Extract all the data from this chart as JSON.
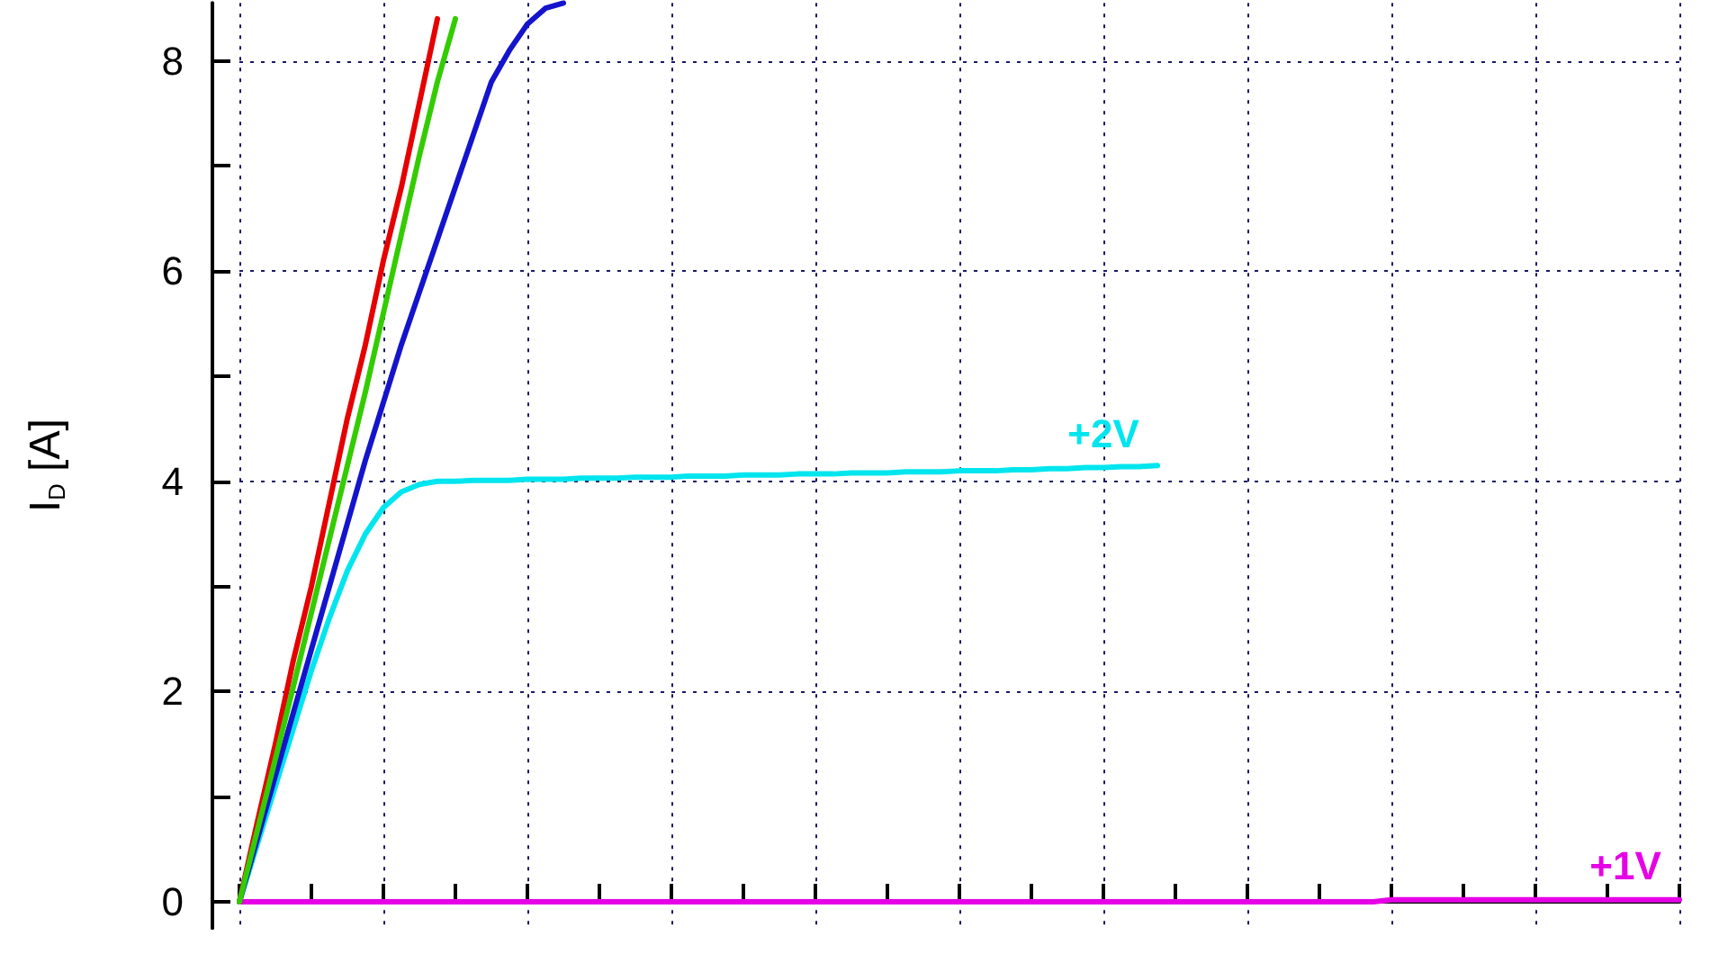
{
  "chart_data": {
    "type": "line",
    "ylabel": "I$_{D}$ [A]",
    "categories": [
      null,
      null,
      null,
      null,
      null,
      null,
      null,
      null,
      null,
      null,
      null,
      null,
      null,
      null,
      null,
      null,
      null,
      null,
      null,
      null,
      null,
      null,
      null,
      null,
      null,
      null,
      null,
      null,
      null,
      null,
      null,
      null,
      null,
      null,
      null,
      null,
      null,
      null,
      null,
      null,
      null,
      null,
      null,
      null,
      null,
      null,
      null,
      null,
      null,
      null,
      null,
      null,
      null,
      null,
      null,
      null,
      null,
      null,
      null,
      null,
      null,
      null,
      null,
      null,
      null,
      null,
      null,
      null,
      null,
      null,
      null,
      null,
      null,
      null,
      null,
      null,
      null,
      null,
      null,
      null,
      null
    ],
    "ylim": [
      -0.25,
      8.55
    ],
    "yticks": [
      0,
      {
        "value": 1,
        "label": null
      },
      2,
      {
        "value": 3,
        "label": null
      },
      4,
      {
        "value": 5,
        "label": null
      },
      6,
      {
        "value": 7,
        "label": null
      },
      8
    ],
    "grid": true,
    "marker": "none",
    "line_style": "solid",
    "series": [
      {
        "color": "#e60000",
        "values": [
          0,
          0.76,
          1.5,
          2.3,
          3.0,
          3.8,
          4.6,
          5.3,
          6.1,
          6.8,
          7.6,
          8.4,
          null,
          null,
          null,
          null,
          null,
          null,
          null,
          null,
          null,
          null,
          null,
          null,
          null,
          null,
          null,
          null,
          null,
          null,
          null,
          null,
          null,
          null,
          null,
          null,
          null,
          null,
          null,
          null,
          null,
          null,
          null,
          null,
          null,
          null,
          null,
          null,
          null,
          null,
          null,
          null,
          null,
          null,
          null,
          null,
          null,
          null,
          null,
          null,
          null,
          null,
          null,
          null,
          null,
          null,
          null,
          null,
          null,
          null,
          null,
          null,
          null,
          null,
          null,
          null,
          null,
          null,
          null,
          null,
          null
        ]
      },
      {
        "color": "#33cc00",
        "values": [
          0,
          0.68,
          1.36,
          2.05,
          2.75,
          3.45,
          4.15,
          4.85,
          5.6,
          6.35,
          7.1,
          7.8,
          8.4,
          null,
          null,
          null,
          null,
          null,
          null,
          null,
          null,
          null,
          null,
          null,
          null,
          null,
          null,
          null,
          null,
          null,
          null,
          null,
          null,
          null,
          null,
          null,
          null,
          null,
          null,
          null,
          null,
          null,
          null,
          null,
          null,
          null,
          null,
          null,
          null,
          null,
          null,
          null,
          null,
          null,
          null,
          null,
          null,
          null,
          null,
          null,
          null,
          null,
          null,
          null,
          null,
          null,
          null,
          null,
          null,
          null,
          null,
          null,
          null,
          null,
          null,
          null,
          null,
          null,
          null,
          null,
          null
        ]
      },
      {
        "color": "#1414cc",
        "values": [
          0,
          0.6,
          1.2,
          1.8,
          2.4,
          3.0,
          3.6,
          4.2,
          4.75,
          5.3,
          5.8,
          6.3,
          6.8,
          7.3,
          7.8,
          8.1,
          8.35,
          8.5,
          8.55,
          null,
          null,
          null,
          null,
          null,
          null,
          null,
          null,
          null,
          null,
          null,
          null,
          null,
          null,
          null,
          null,
          null,
          null,
          null,
          null,
          null,
          null,
          null,
          null,
          null,
          null,
          null,
          null,
          null,
          null,
          null,
          null,
          null,
          null,
          null,
          null,
          null,
          null,
          null,
          null,
          null,
          null,
          null,
          null,
          null,
          null,
          null,
          null,
          null,
          null,
          null,
          null,
          null,
          null,
          null,
          null,
          null,
          null,
          null,
          null,
          null,
          null
        ]
      },
      {
        "name": "+2V",
        "color": "#00e5ee",
        "values": [
          0,
          0.55,
          1.1,
          1.65,
          2.2,
          2.7,
          3.15,
          3.5,
          3.75,
          3.9,
          3.97,
          4.0,
          4.0,
          4.01,
          4.01,
          4.01,
          4.02,
          4.02,
          4.02,
          4.03,
          4.03,
          4.03,
          4.04,
          4.04,
          4.04,
          4.05,
          4.05,
          4.05,
          4.06,
          4.06,
          4.06,
          4.07,
          4.07,
          4.07,
          4.08,
          4.08,
          4.08,
          4.09,
          4.09,
          4.09,
          4.1,
          4.1,
          4.1,
          4.11,
          4.11,
          4.12,
          4.12,
          4.13,
          4.13,
          4.14,
          4.14,
          4.15,
          null,
          null,
          null,
          null,
          null,
          null,
          null,
          null,
          null,
          null,
          null,
          null,
          null,
          null,
          null,
          null,
          null,
          null,
          null,
          null,
          null,
          null,
          null,
          null,
          null,
          null,
          null,
          null,
          null
        ]
      },
      {
        "name": "+1V",
        "color": "#e600e6",
        "values": [
          0,
          0,
          0,
          0,
          0,
          0,
          0,
          0,
          0,
          0,
          0,
          0,
          0,
          0,
          0,
          0,
          0,
          0,
          0,
          0,
          0,
          0,
          0,
          0,
          0,
          0,
          0,
          0,
          0,
          0,
          0,
          0,
          0,
          0,
          0,
          0,
          0,
          0,
          0,
          0,
          0,
          0,
          0,
          0,
          0,
          0,
          0,
          0,
          0,
          0,
          0,
          0,
          0,
          0,
          0,
          0,
          0,
          0,
          0,
          0,
          0,
          0,
          0,
          0,
          0.02,
          0.02,
          0.02,
          0.02,
          0.02,
          0.02,
          0.02,
          0.02,
          0.02,
          0.02,
          0.02,
          0.02,
          0.02,
          0.02,
          0.02,
          0.02,
          0.02
        ]
      }
    ]
  }
}
